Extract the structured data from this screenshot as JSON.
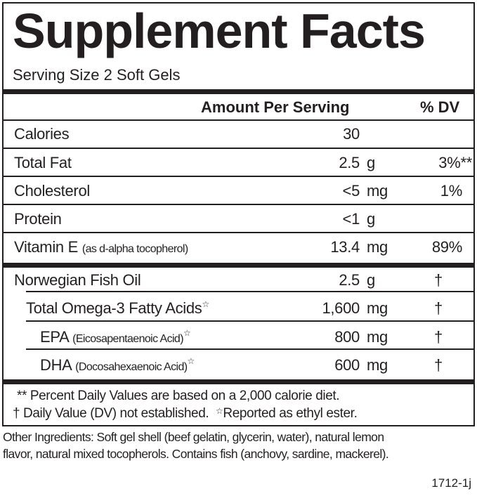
{
  "title": "Supplement Facts",
  "serving_size": "Serving Size 2 Soft Gels",
  "header": {
    "amount": "Amount Per Serving",
    "dv": "% DV"
  },
  "nutrients": [
    {
      "name": "Calories",
      "note": "",
      "amount": "30",
      "unit": "",
      "dv": ""
    },
    {
      "name": "Total Fat",
      "note": "",
      "amount": "2.5",
      "unit": "g",
      "dv": "3%**"
    },
    {
      "name": "Cholesterol",
      "note": "",
      "amount": "<5",
      "unit": "mg",
      "dv": "1%"
    },
    {
      "name": "Protein",
      "note": "",
      "amount": "<1",
      "unit": "g",
      "dv": ""
    },
    {
      "name": "Vitamin E",
      "note": "(as d-alpha tocopherol)",
      "amount": "13.4",
      "unit": "mg",
      "dv": "89%"
    }
  ],
  "ingredients": [
    {
      "name": "Norwegian Fish Oil",
      "note": "",
      "star": "",
      "amount": "2.5",
      "unit": "g",
      "dv": "†"
    },
    {
      "name": "Total Omega-3 Fatty Acids",
      "note": "",
      "star": "☆",
      "amount": "1,600",
      "unit": "mg",
      "dv": "†"
    },
    {
      "name": "EPA",
      "note": "(Eicosapentaenoic Acid)",
      "star": "☆",
      "amount": "800",
      "unit": "mg",
      "dv": "†"
    },
    {
      "name": "DHA",
      "note": "(Docosahexaenoic Acid)",
      "star": "☆",
      "amount": "600",
      "unit": "mg",
      "dv": "†"
    }
  ],
  "footnotes": {
    "line1": "** Percent Daily Values are based on a 2,000 calorie diet.",
    "line2a": "† Daily Value (DV) not established.",
    "star": "☆",
    "line2b": "Reported as ethyl ester."
  },
  "other_ingredients": {
    "line1": "Other Ingredients: Soft gel shell (beef gelatin, glycerin, water), natural lemon",
    "line2": "flavor, natural mixed tocopherols. Contains fish (anchovy, sardine, mackerel)."
  },
  "code": "1712-1j"
}
